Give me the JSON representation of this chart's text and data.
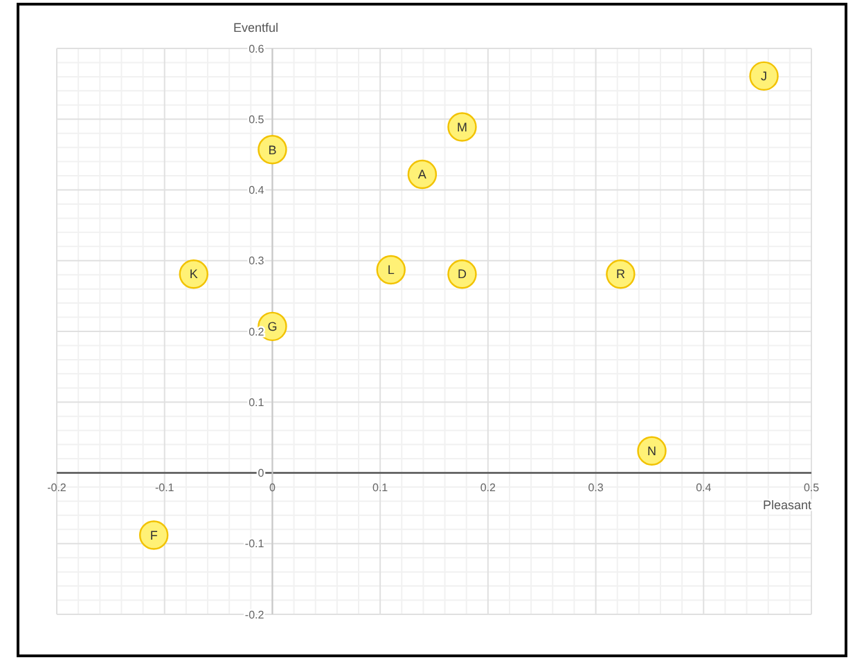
{
  "chart_data": {
    "type": "scatter",
    "xlabel": "Pleasant",
    "ylabel": "Eventful",
    "xlim": [
      -0.2,
      0.5
    ],
    "xticks": [
      -0.2,
      -0.1,
      0,
      0.1,
      0.2,
      0.3,
      0.4,
      0.5
    ],
    "ylim": [
      -0.2,
      0.6
    ],
    "yticks": [
      -0.2,
      -0.1,
      0,
      0.1,
      0.2,
      0.3,
      0.4,
      0.5,
      0.6
    ],
    "grid": true,
    "marker": "circle",
    "series": [
      {
        "color": "#fff176",
        "x": [
          0.139,
          0.0,
          0.176,
          -0.11,
          0.0,
          0.456,
          -0.073,
          0.11,
          0.176,
          0.352,
          0.323
        ],
        "values": [
          0.422,
          0.457,
          0.281,
          -0.088,
          0.207,
          0.561,
          0.281,
          0.287,
          0.489,
          0.031,
          0.281
        ],
        "value_labels": [
          "A",
          "B",
          "D",
          "F",
          "G",
          "J",
          "K",
          "L",
          "M",
          "N",
          "R"
        ]
      }
    ]
  }
}
